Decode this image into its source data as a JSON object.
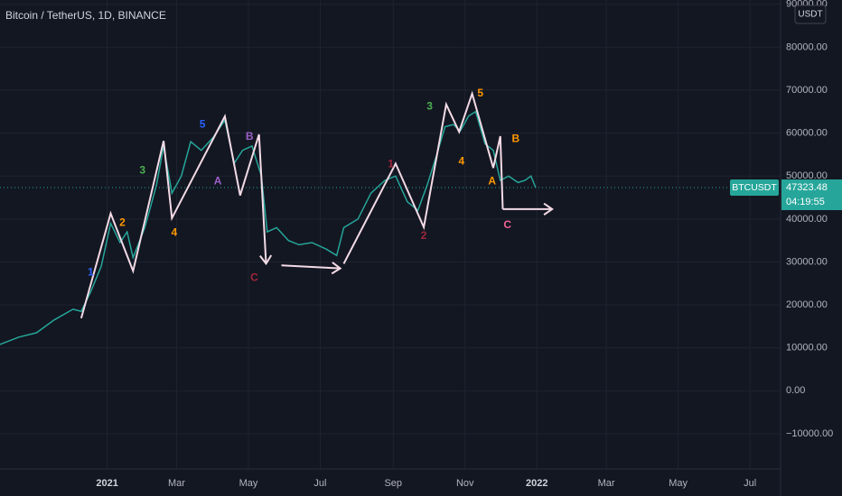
{
  "chart_data": {
    "type": "line",
    "title": "Bitcoin / TetherUS, 1D, BINANCE",
    "currency_button": "USDT",
    "countdown": "04:19:55",
    "x": [
      -91,
      -75,
      -60,
      -45,
      -29,
      -22,
      -14,
      -5,
      3,
      11,
      17,
      22,
      32,
      42,
      48,
      55,
      63,
      71,
      80,
      90,
      100,
      108,
      115,
      123,
      131,
      136,
      144,
      154,
      163,
      174,
      186,
      195,
      201,
      213,
      224,
      236,
      245,
      255,
      264,
      272,
      280,
      287,
      294,
      300,
      307,
      313,
      321,
      328,
      334,
      341,
      349,
      355,
      360,
      364
    ],
    "series": [
      {
        "name": "BTCUSDT",
        "color": "#26a69a",
        "values": [
          10800,
          12500,
          13500,
          16500,
          19000,
          18500,
          23000,
          29000,
          39000,
          34500,
          37000,
          31000,
          38000,
          48000,
          57000,
          46000,
          50000,
          58000,
          56000,
          59000,
          63000,
          53000,
          56000,
          57000,
          50000,
          37000,
          38000,
          35000,
          34000,
          34500,
          33000,
          31500,
          38000,
          40000,
          46000,
          49000,
          50000,
          44000,
          42000,
          48000,
          55000,
          61500,
          62000,
          60500,
          64000,
          65000,
          57500,
          56000,
          49000,
          50000,
          48500,
          49000,
          50000,
          47323.48
        ]
      }
    ],
    "xlim": [
      -91,
      572
    ],
    "ylim": [
      -18200,
      91000
    ],
    "xticks": [
      {
        "value": 0,
        "label": "2021"
      },
      {
        "value": 59,
        "label": "Mar"
      },
      {
        "value": 120,
        "label": "May"
      },
      {
        "value": 181,
        "label": "Jul"
      },
      {
        "value": 243,
        "label": "Sep"
      },
      {
        "value": 304,
        "label": "Nov"
      },
      {
        "value": 365,
        "label": "2022"
      },
      {
        "value": 424,
        "label": "Mar"
      },
      {
        "value": 485,
        "label": "May"
      },
      {
        "value": 546,
        "label": "Jul"
      }
    ],
    "yticks": [
      {
        "value": 90000,
        "label": "90000.00"
      },
      {
        "value": 80000,
        "label": "80000.00"
      },
      {
        "value": 70000,
        "label": "70000.00"
      },
      {
        "value": 60000,
        "label": "60000.00"
      },
      {
        "value": 50000,
        "label": "50000.00"
      },
      {
        "value": 40000,
        "label": "40000.00"
      },
      {
        "value": 30000,
        "label": "30000.00"
      },
      {
        "value": 20000,
        "label": "20000.00"
      },
      {
        "value": 10000,
        "label": "10000.00"
      },
      {
        "value": 0,
        "label": "0.00"
      },
      {
        "value": -10000,
        "label": "−10000.00"
      }
    ],
    "grid": true,
    "drawings": [
      {
        "color": "#f3dbe6",
        "arrow": true,
        "x": [
          -22,
          3,
          22,
          48,
          55,
          100,
          113,
          129,
          135
        ],
        "y": [
          16900,
          41300,
          27900,
          58200,
          40200,
          63900,
          45500,
          59700,
          29600
        ]
      },
      {
        "color": "#f3dbe6",
        "arrow": true,
        "x": [
          148,
          198
        ],
        "y": [
          29200,
          28500
        ]
      },
      {
        "color": "#f3dbe6",
        "arrow": false,
        "x": [
          201,
          245,
          269,
          288,
          299,
          310,
          328,
          334,
          336
        ],
        "y": [
          29600,
          52900,
          38100,
          66700,
          60300,
          69200,
          51900,
          59300,
          42300
        ]
      },
      {
        "color": "#f3dbe6",
        "arrow": true,
        "x": [
          336,
          378
        ],
        "y": [
          42300,
          42300
        ]
      }
    ],
    "annotations": [
      {
        "text": "1",
        "x": -14,
        "y": 27500,
        "color": "#2962ff"
      },
      {
        "text": "2",
        "x": 13,
        "y": 39100,
        "color": "#ff9800"
      },
      {
        "text": "3",
        "x": 30,
        "y": 51200,
        "color": "#4caf50"
      },
      {
        "text": "4",
        "x": 57,
        "y": 36800,
        "color": "#ff9800"
      },
      {
        "text": "5",
        "x": 81,
        "y": 62000,
        "color": "#2962ff"
      },
      {
        "text": "A",
        "x": 94,
        "y": 48700,
        "color": "#9c5fc8"
      },
      {
        "text": "B",
        "x": 121,
        "y": 59100,
        "color": "#9c5fc8"
      },
      {
        "text": "C",
        "x": 125,
        "y": 26200,
        "color": "#a0263a"
      },
      {
        "text": "1",
        "x": 241,
        "y": 52700,
        "color": "#a0263a"
      },
      {
        "text": "2",
        "x": 269,
        "y": 36000,
        "color": "#a0263a"
      },
      {
        "text": "3",
        "x": 274,
        "y": 66100,
        "color": "#4caf50"
      },
      {
        "text": "4",
        "x": 301,
        "y": 53300,
        "color": "#ff9800"
      },
      {
        "text": "5",
        "x": 317,
        "y": 69200,
        "color": "#ff9800"
      },
      {
        "text": "A",
        "x": 327,
        "y": 48700,
        "color": "#ff9800"
      },
      {
        "text": "B",
        "x": 347,
        "y": 58600,
        "color": "#ff9800"
      },
      {
        "text": "C",
        "x": 340,
        "y": 38500,
        "color": "#f06292"
      }
    ]
  }
}
